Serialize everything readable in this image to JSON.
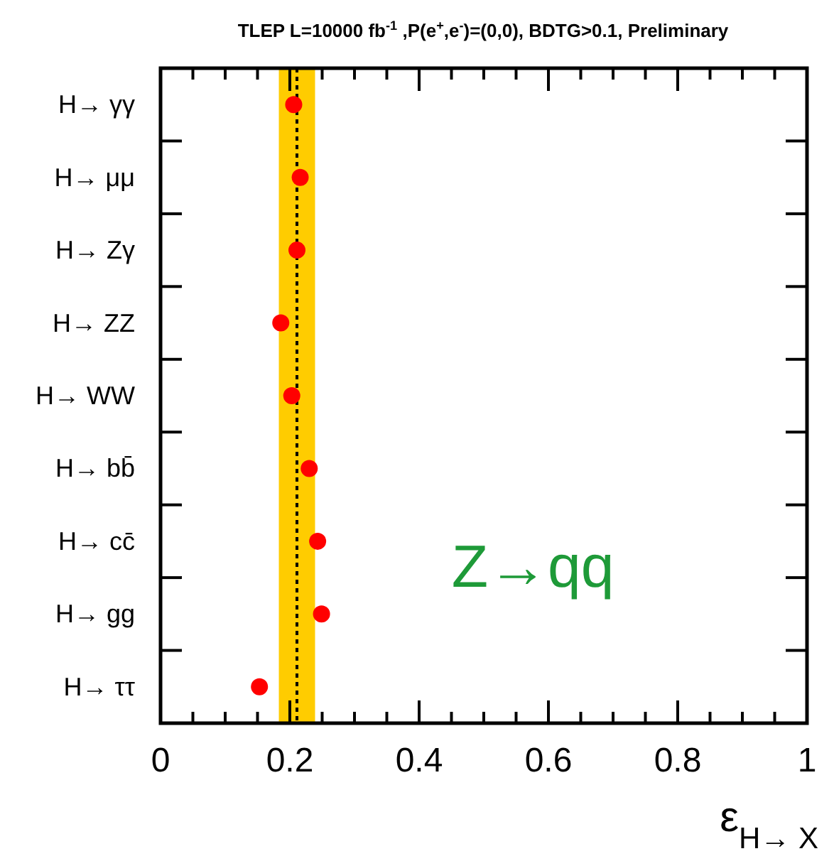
{
  "chart_data": {
    "type": "scatter",
    "orientation": "horizontal",
    "title": "TLEP L=10000 fb$^{-1}$ ,P(e$^{+}$,e$^{-}$)=(0,0), BDTG>0.1,      Preliminary",
    "xlabel": "ε$_{H→ X}$",
    "categories": [
      "H→ γγ",
      "H→ μμ",
      "H→ Zγ",
      "H→ ZZ",
      "H→ WW",
      "H→ bb̄",
      "H→ cc̄",
      "H→ gg",
      "H→ ττ"
    ],
    "series": [
      {
        "color": "#ff0000",
        "values": [
          0.206,
          0.216,
          0.211,
          0.186,
          0.203,
          0.23,
          0.243,
          0.249,
          0.153
        ]
      }
    ],
    "marker": "circle",
    "xlim": [
      0,
      1
    ],
    "xticks": [
      0,
      {
        "value": 0.05,
        "label": null
      },
      {
        "value": 0.1,
        "label": null
      },
      {
        "value": 0.15,
        "label": null
      },
      0.2,
      {
        "value": 0.25,
        "label": null
      },
      {
        "value": 0.3,
        "label": null
      },
      {
        "value": 0.35,
        "label": null
      },
      0.4,
      {
        "value": 0.45,
        "label": null
      },
      {
        "value": 0.5,
        "label": null
      },
      {
        "value": 0.55,
        "label": null
      },
      0.6,
      {
        "value": 0.65,
        "label": null
      },
      {
        "value": 0.7,
        "label": null
      },
      {
        "value": 0.75,
        "label": null
      },
      0.8,
      {
        "value": 0.85,
        "label": null
      },
      {
        "value": 0.9,
        "label": null
      },
      {
        "value": 0.95,
        "label": null
      },
      1
    ],
    "bands": [
      {
        "axis": "x",
        "from": 0.183,
        "to": 0.239,
        "color": "#ffcc00"
      }
    ],
    "ref_lines": [
      {
        "axis": "x",
        "value": 0.211,
        "line_style": "dotted",
        "color": "#000000"
      }
    ],
    "annotations": [
      "Z→qq"
    ],
    "grid": false
  }
}
